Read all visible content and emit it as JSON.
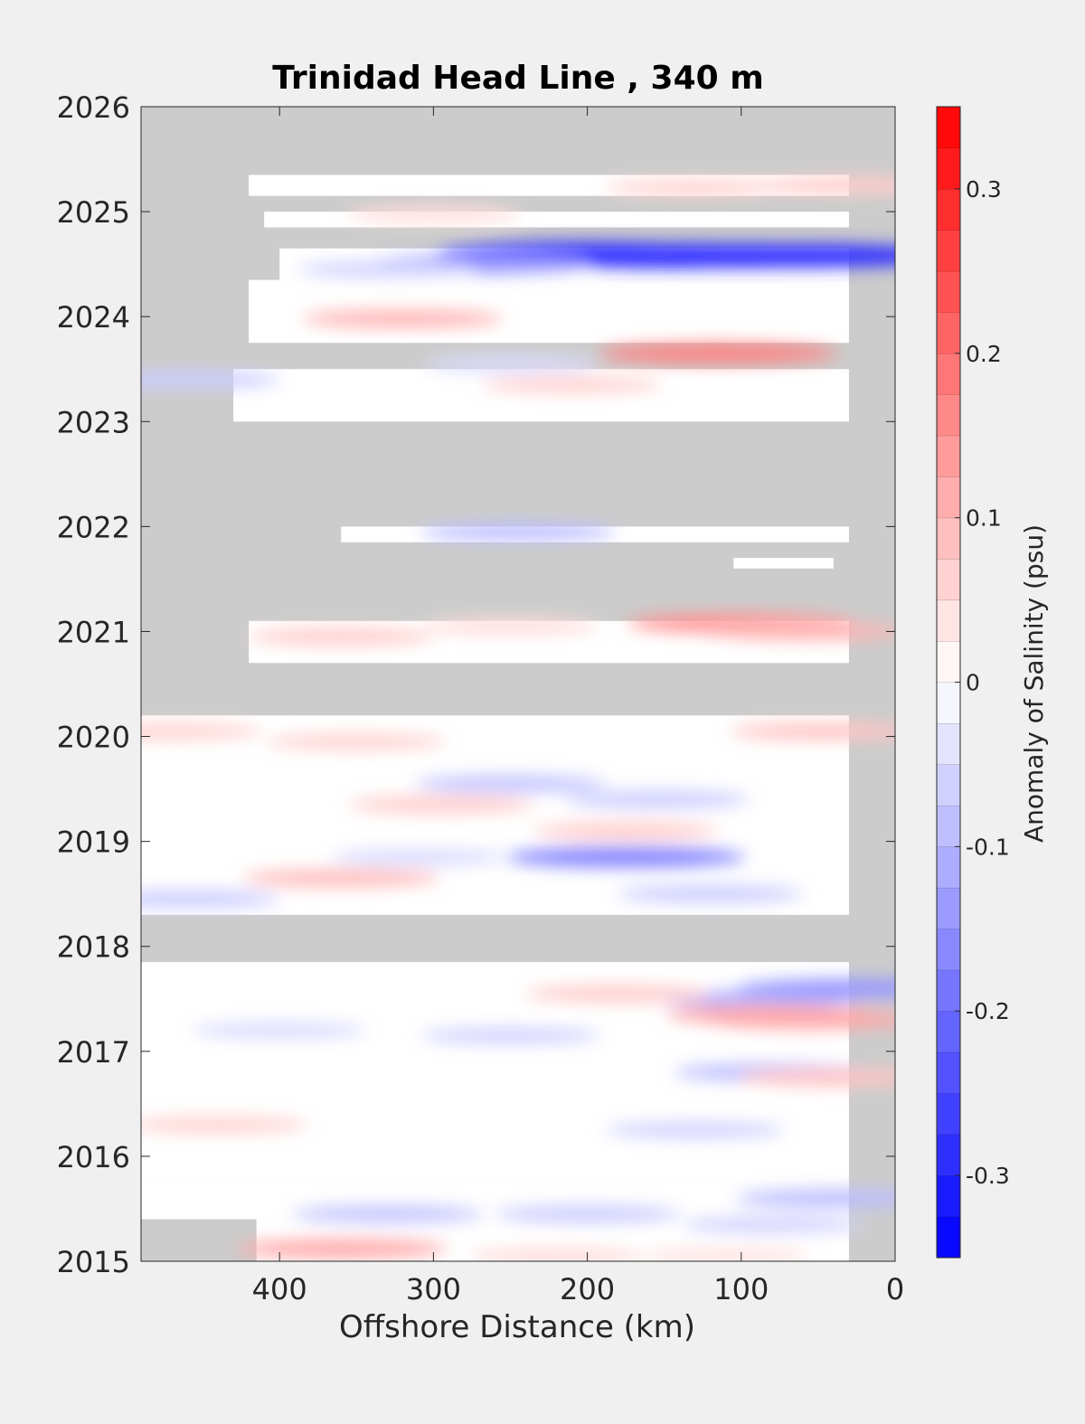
{
  "chart_data": {
    "type": "heatmap",
    "title": "Trinidad Head Line , 340 m",
    "xlabel": "Offshore Distance (km)",
    "ylabel": "",
    "xlim": [
      490,
      0
    ],
    "ylim": [
      2015,
      2026
    ],
    "x_ticks": [
      "400",
      "300",
      "200",
      "100",
      "0"
    ],
    "x_tick_values": [
      400,
      300,
      200,
      100,
      0
    ],
    "y_ticks": [
      "2015",
      "2016",
      "2017",
      "2018",
      "2019",
      "2020",
      "2021",
      "2022",
      "2023",
      "2024",
      "2025",
      "2026"
    ],
    "y_tick_values": [
      2015,
      2016,
      2017,
      2018,
      2019,
      2020,
      2021,
      2022,
      2023,
      2024,
      2025,
      2026
    ],
    "colorbar": {
      "label": "Anomaly of Salinity (psu)",
      "range": [
        -0.35,
        0.35
      ],
      "step": 0.025,
      "ticks": [
        "0.3",
        "0.2",
        "0.1",
        "0",
        "-0.1",
        "-0.2",
        "-0.3"
      ],
      "tick_values": [
        0.3,
        0.2,
        0.1,
        0,
        -0.1,
        -0.2,
        -0.3
      ],
      "negative_color": "#0000ff",
      "zero_color": "#ffffff",
      "positive_color": "#ff0000"
    },
    "missing_color": "#cccccc",
    "coverage_bands": [
      {
        "y0": 2015.0,
        "y1": 2015.4,
        "x_far": 415,
        "x_near": 30
      },
      {
        "y0": 2015.4,
        "y1": 2015.75,
        "x_far": 490,
        "x_near": 30
      },
      {
        "y0": 2015.75,
        "y1": 2017.85,
        "x_far": 490,
        "x_near": 30
      },
      {
        "y0": 2018.3,
        "y1": 2020.2,
        "x_far": 490,
        "x_near": 30
      },
      {
        "y0": 2020.7,
        "y1": 2021.1,
        "x_far": 420,
        "x_near": 30
      },
      {
        "y0": 2021.6,
        "y1": 2021.7,
        "x_far": 105,
        "x_near": 40
      },
      {
        "y0": 2021.85,
        "y1": 2022.0,
        "x_far": 360,
        "x_near": 30
      },
      {
        "y0": 2023.0,
        "y1": 2023.5,
        "x_far": 430,
        "x_near": 30
      },
      {
        "y0": 2023.75,
        "y1": 2024.35,
        "x_far": 420,
        "x_near": 30
      },
      {
        "y0": 2024.35,
        "y1": 2024.65,
        "x_far": 400,
        "x_near": 30
      },
      {
        "y0": 2024.85,
        "y1": 2025.0,
        "x_far": 410,
        "x_near": 30
      },
      {
        "y0": 2025.15,
        "y1": 2025.35,
        "x_far": 420,
        "x_near": 30
      }
    ],
    "anomalies": [
      {
        "x": 145,
        "y": 2024.58,
        "v": -0.32
      },
      {
        "x": 100,
        "y": 2024.58,
        "v": -0.3
      },
      {
        "x": 200,
        "y": 2024.6,
        "v": -0.28
      },
      {
        "x": 60,
        "y": 2024.58,
        "v": -0.28
      },
      {
        "x": 270,
        "y": 2024.5,
        "v": -0.14
      },
      {
        "x": 330,
        "y": 2024.45,
        "v": -0.06
      },
      {
        "x": 320,
        "y": 2023.98,
        "v": 0.1
      },
      {
        "x": 115,
        "y": 2023.65,
        "v": 0.17
      },
      {
        "x": 210,
        "y": 2023.35,
        "v": 0.06
      },
      {
        "x": 460,
        "y": 2023.4,
        "v": -0.07
      },
      {
        "x": 250,
        "y": 2023.55,
        "v": -0.05
      },
      {
        "x": 100,
        "y": 2021.08,
        "v": 0.15
      },
      {
        "x": 60,
        "y": 2021.0,
        "v": 0.1
      },
      {
        "x": 360,
        "y": 2020.95,
        "v": 0.07
      },
      {
        "x": 250,
        "y": 2021.05,
        "v": 0.05
      },
      {
        "x": 245,
        "y": 2021.95,
        "v": -0.09
      },
      {
        "x": 45,
        "y": 2020.05,
        "v": 0.08
      },
      {
        "x": 470,
        "y": 2020.05,
        "v": 0.06
      },
      {
        "x": 350,
        "y": 2019.95,
        "v": 0.06
      },
      {
        "x": 250,
        "y": 2019.55,
        "v": -0.08
      },
      {
        "x": 155,
        "y": 2019.4,
        "v": -0.07
      },
      {
        "x": 295,
        "y": 2019.35,
        "v": 0.07
      },
      {
        "x": 175,
        "y": 2018.85,
        "v": -0.17
      },
      {
        "x": 175,
        "y": 2019.1,
        "v": 0.07
      },
      {
        "x": 360,
        "y": 2018.65,
        "v": 0.09
      },
      {
        "x": 460,
        "y": 2018.45,
        "v": -0.07
      },
      {
        "x": 120,
        "y": 2018.5,
        "v": -0.07
      },
      {
        "x": 310,
        "y": 2018.85,
        "v": -0.05
      },
      {
        "x": 90,
        "y": 2017.5,
        "v": -0.1
      },
      {
        "x": 30,
        "y": 2017.6,
        "v": -0.14
      },
      {
        "x": 180,
        "y": 2017.55,
        "v": 0.07
      },
      {
        "x": 80,
        "y": 2017.35,
        "v": 0.12
      },
      {
        "x": 55,
        "y": 2017.3,
        "v": 0.12
      },
      {
        "x": 250,
        "y": 2017.15,
        "v": -0.06
      },
      {
        "x": 400,
        "y": 2017.2,
        "v": -0.05
      },
      {
        "x": 80,
        "y": 2016.8,
        "v": -0.09
      },
      {
        "x": 40,
        "y": 2016.75,
        "v": 0.08
      },
      {
        "x": 440,
        "y": 2016.3,
        "v": 0.06
      },
      {
        "x": 130,
        "y": 2016.25,
        "v": -0.06
      },
      {
        "x": 40,
        "y": 2015.6,
        "v": -0.09
      },
      {
        "x": 330,
        "y": 2015.45,
        "v": -0.08
      },
      {
        "x": 200,
        "y": 2015.45,
        "v": -0.07
      },
      {
        "x": 80,
        "y": 2015.35,
        "v": -0.06
      },
      {
        "x": 360,
        "y": 2015.12,
        "v": 0.12
      },
      {
        "x": 220,
        "y": 2015.05,
        "v": 0.05
      },
      {
        "x": 110,
        "y": 2015.05,
        "v": 0.04
      },
      {
        "x": 300,
        "y": 2024.98,
        "v": 0.05
      },
      {
        "x": 130,
        "y": 2025.23,
        "v": 0.06
      },
      {
        "x": 30,
        "y": 2025.25,
        "v": 0.07
      }
    ]
  }
}
